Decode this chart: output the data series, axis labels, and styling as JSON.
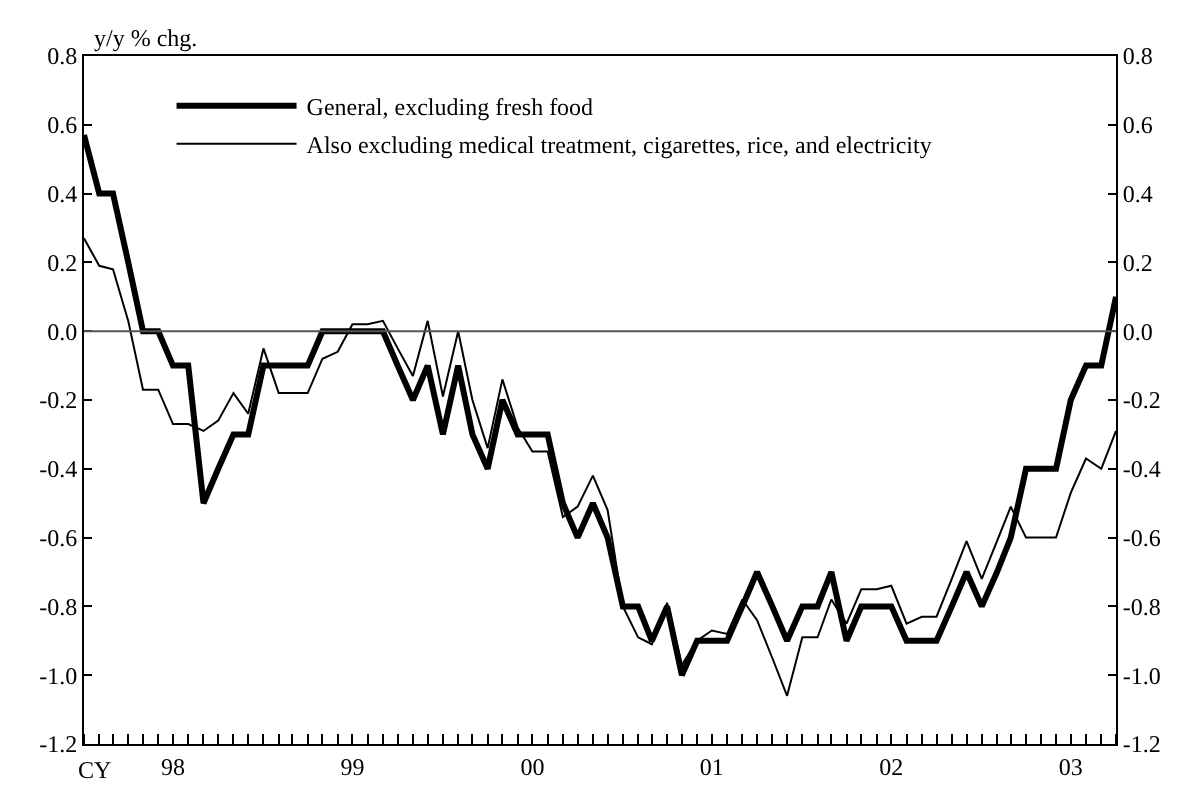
{
  "chart_data": {
    "type": "line",
    "ylabel": "y/y % chg.",
    "xlabel": "CY",
    "legend": "top left",
    "grid": false,
    "marker": "none",
    "line_style": "solid",
    "x": [
      "1998-01",
      "1998-02",
      "1998-03",
      "1998-04",
      "1998-05",
      "1998-06",
      "1998-07",
      "1998-08",
      "1998-09",
      "1998-10",
      "1998-11",
      "1998-12",
      "1999-01",
      "1999-02",
      "1999-03",
      "1999-04",
      "1999-05",
      "1999-06",
      "1999-07",
      "1999-08",
      "1999-09",
      "1999-10",
      "1999-11",
      "1999-12",
      "2000-01",
      "2000-02",
      "2000-03",
      "2000-04",
      "2000-05",
      "2000-06",
      "2000-07",
      "2000-08",
      "2000-09",
      "2000-10",
      "2000-11",
      "2000-12",
      "2001-01",
      "2001-02",
      "2001-03",
      "2001-04",
      "2001-05",
      "2001-06",
      "2001-07",
      "2001-08",
      "2001-09",
      "2001-10",
      "2001-11",
      "2001-12",
      "2002-01",
      "2002-02",
      "2002-03",
      "2002-04",
      "2002-05",
      "2002-06",
      "2002-07",
      "2002-08",
      "2002-09",
      "2002-10",
      "2002-11",
      "2002-12",
      "2003-01",
      "2003-02",
      "2003-03",
      "2003-04",
      "2003-05",
      "2003-06",
      "2003-07",
      "2003-08",
      "2003-09",
      "2003-10"
    ],
    "series": [
      {
        "name": "General, excluding fresh food",
        "color": "#000000",
        "values": [
          0.57,
          0.4,
          0.4,
          0.2,
          0,
          0,
          -0.1,
          -0.1,
          -0.5,
          -0.4,
          -0.3,
          -0.3,
          -0.1,
          -0.1,
          -0.1,
          -0.1,
          0,
          0,
          0,
          0,
          0,
          -0.1,
          -0.2,
          -0.1,
          -0.3,
          -0.1,
          -0.3,
          -0.4,
          -0.2,
          -0.3,
          -0.3,
          -0.3,
          -0.5,
          -0.6,
          -0.5,
          -0.6,
          -0.8,
          -0.8,
          -0.9,
          -0.8,
          -1.0,
          -0.9,
          -0.9,
          -0.9,
          -0.8,
          -0.7,
          -0.8,
          -0.9,
          -0.8,
          -0.8,
          -0.7,
          -0.9,
          -0.8,
          -0.8,
          -0.8,
          -0.9,
          -0.9,
          -0.9,
          -0.8,
          -0.7,
          -0.8,
          -0.7,
          -0.6,
          -0.4,
          -0.4,
          -0.4,
          -0.2,
          -0.1,
          -0.1,
          0.1
        ]
      },
      {
        "name": "Also excluding medical treatment, cigarettes, rice, and electricity",
        "color": "#000000",
        "values": [
          0.27,
          0.19,
          0.18,
          0.03,
          -0.17,
          -0.17,
          -0.27,
          -0.27,
          -0.29,
          -0.26,
          -0.18,
          -0.24,
          -0.05,
          -0.18,
          -0.18,
          -0.18,
          -0.08,
          -0.06,
          0.02,
          0.02,
          0.03,
          -0.05,
          -0.13,
          0.03,
          -0.19,
          0.0,
          -0.2,
          -0.34,
          -0.14,
          -0.28,
          -0.35,
          -0.35,
          -0.54,
          -0.51,
          -0.42,
          -0.52,
          -0.8,
          -0.89,
          -0.91,
          -0.79,
          -0.97,
          -0.9,
          -0.87,
          -0.88,
          -0.78,
          -0.84,
          -0.95,
          -1.06,
          -0.89,
          -0.89,
          -0.78,
          -0.85,
          -0.75,
          -0.75,
          -0.74,
          -0.85,
          -0.83,
          -0.83,
          -0.72,
          -0.61,
          -0.72,
          -0.61,
          -0.51,
          -0.6,
          -0.6,
          -0.6,
          -0.47,
          -0.37,
          -0.4,
          -0.29
        ]
      }
    ],
    "xlim": [
      "1998-01",
      "2003-10"
    ],
    "xticks": [
      {
        "value": "1998-07",
        "label": "98"
      },
      {
        "value": "1999-07",
        "label": "99"
      },
      {
        "value": "2000-07",
        "label": "00"
      },
      {
        "value": "2001-07",
        "label": "01"
      },
      {
        "value": "2002-07",
        "label": "02"
      },
      {
        "value": "2003-07",
        "label": "03"
      }
    ],
    "ylim": [
      -1.2,
      0.8
    ],
    "yticks": [
      {
        "value": -1.2,
        "label": "-1.2"
      },
      {
        "value": -1.0,
        "label": "-1.0"
      },
      {
        "value": -0.8,
        "label": "-0.8"
      },
      {
        "value": -0.6,
        "label": "-0.6"
      },
      {
        "value": -0.4,
        "label": "-0.4"
      },
      {
        "value": -0.2,
        "label": "-0.2"
      },
      {
        "value": 0,
        "label": "0.0"
      },
      {
        "value": 0.2,
        "label": "0.2"
      },
      {
        "value": 0.4,
        "label": "0.4"
      },
      {
        "value": 0.6,
        "label": "0.6"
      },
      {
        "value": 0.8,
        "label": "0.8"
      }
    ],
    "y2lim": [
      -1.2,
      0.8
    ],
    "y2ticks": [
      {
        "value": -1.2,
        "label": "-1.2"
      },
      {
        "value": -1.0,
        "label": "-1.0"
      },
      {
        "value": -0.8,
        "label": "-0.8"
      },
      {
        "value": -0.6,
        "label": "-0.6"
      },
      {
        "value": -0.4,
        "label": "-0.4"
      },
      {
        "value": -0.2,
        "label": "-0.2"
      },
      {
        "value": 0,
        "label": "0.0"
      },
      {
        "value": 0.2,
        "label": "0.2"
      },
      {
        "value": 0.4,
        "label": "0.4"
      },
      {
        "value": 0.6,
        "label": "0.6"
      },
      {
        "value": 0.8,
        "label": "0.8"
      }
    ],
    "ref_lines": [
      {
        "axis": "y",
        "value": 0,
        "color": "#555555"
      }
    ]
  }
}
